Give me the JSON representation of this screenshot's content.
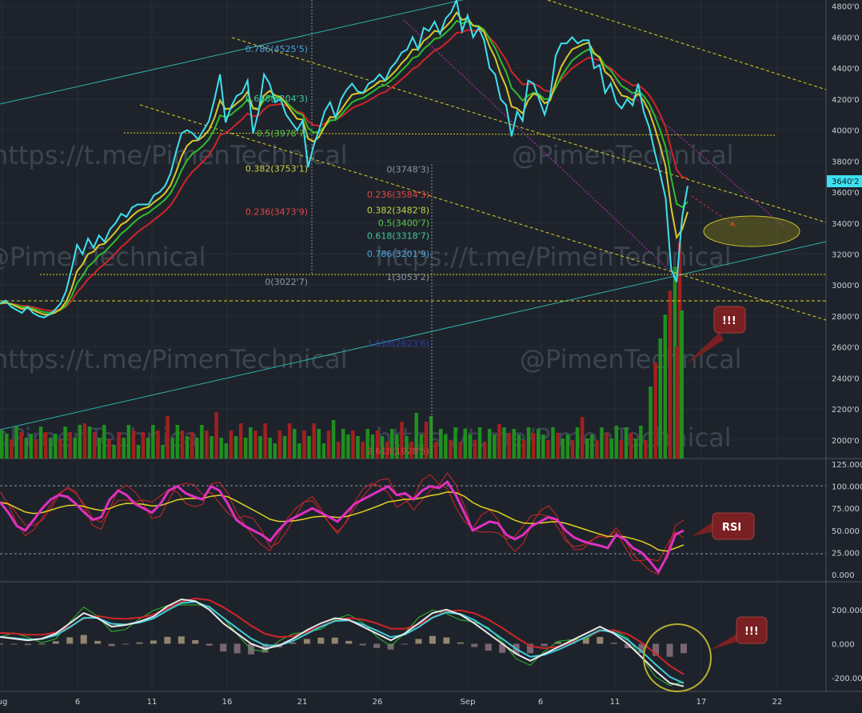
{
  "chart_data": [
    {
      "panel": "price",
      "type": "line",
      "y_ticks": [
        "4800'0",
        "4600'0",
        "4400'0",
        "4200'0",
        "4000'0",
        "3800'0",
        "3600'0",
        "3400'0",
        "3200'0",
        "3000'0",
        "2800'0",
        "2600'0",
        "2400'0",
        "2200'0",
        "2000'0"
      ],
      "ylim": [
        1880,
        4840
      ],
      "x_ticks": [
        "ug",
        "6",
        "11",
        "16",
        "21",
        "26",
        "Sep",
        "6",
        "11",
        "17",
        "22"
      ],
      "last_price_label": "3640'2",
      "last_price": 3640,
      "price_series": [
        2880,
        2900,
        2860,
        2840,
        2820,
        2860,
        2820,
        2800,
        2790,
        2810,
        2840,
        2880,
        2960,
        3100,
        3260,
        3200,
        3300,
        3240,
        3320,
        3280,
        3360,
        3400,
        3460,
        3440,
        3500,
        3520,
        3520,
        3520,
        3580,
        3600,
        3640,
        3720,
        3860,
        3980,
        4000,
        3980,
        3940,
        4000,
        4060,
        4200,
        4360,
        4050,
        4150,
        4220,
        4240,
        4320,
        3980,
        4120,
        4360,
        4300,
        4180,
        4200,
        4100,
        4050,
        4000,
        4060,
        3760,
        3900,
        4000,
        4120,
        4180,
        4080,
        4200,
        4260,
        4300,
        4250,
        4240,
        4300,
        4320,
        4360,
        4320,
        4400,
        4440,
        4500,
        4520,
        4600,
        4520,
        4660,
        4640,
        4700,
        4620,
        4720,
        4760,
        4840,
        4640,
        4740,
        4600,
        4660,
        4580,
        4400,
        4360,
        4200,
        4160,
        3960,
        4120,
        4060,
        4320,
        4300,
        4200,
        4100,
        4220,
        4480,
        4560,
        4560,
        4600,
        4560,
        4580,
        4580,
        4400,
        4420,
        4240,
        4300,
        4180,
        4140,
        4200,
        4160,
        4300,
        4120,
        4020,
        3860,
        3720,
        3560,
        3100,
        3020,
        3440,
        3640
      ],
      "annotations": [
        "!!!",
        "RSI",
        "!!!"
      ]
    },
    {
      "panel": "rsi",
      "type": "line",
      "title": "RSI",
      "y_ticks": [
        "125.000",
        "100.000",
        "75.000",
        "50.000",
        "25.000",
        "0.000"
      ],
      "ylim": [
        0,
        125
      ],
      "values": [
        82,
        70,
        55,
        50,
        62,
        75,
        85,
        90,
        88,
        80,
        70,
        62,
        65,
        85,
        95,
        90,
        80,
        75,
        70,
        80,
        95,
        100,
        92,
        88,
        85,
        100,
        95,
        80,
        62,
        55,
        50,
        45,
        38,
        50,
        60,
        65,
        70,
        75,
        70,
        65,
        60,
        70,
        80,
        85,
        90,
        95,
        100,
        90,
        92,
        85,
        95,
        100,
        98,
        105,
        90,
        70,
        50,
        55,
        60,
        58,
        45,
        40,
        45,
        55,
        60,
        65,
        62,
        50,
        42,
        38,
        35,
        33,
        30,
        45,
        40,
        30,
        25,
        15,
        3,
        20,
        45,
        50
      ]
    },
    {
      "panel": "macd",
      "type": "line",
      "y_ticks": [
        "200.000",
        "0.000",
        "-200.000"
      ],
      "ylim": [
        -270,
        340
      ],
      "values": [
        40,
        30,
        20,
        30,
        60,
        120,
        180,
        150,
        100,
        110,
        130,
        160,
        220,
        260,
        250,
        200,
        120,
        60,
        0,
        -30,
        -10,
        30,
        80,
        120,
        150,
        140,
        100,
        60,
        20,
        60,
        120,
        180,
        200,
        170,
        120,
        60,
        0,
        -60,
        -100,
        -60,
        -20,
        20,
        60,
        100,
        60,
        0,
        -80,
        -160,
        -230,
        -250
      ]
    }
  ],
  "watermark": "https://t.me/PimenTechnical",
  "watermark2": "@PimenTechnical",
  "fib_left": [
    {
      "label": "0.786(4525'5)",
      "color": "#4aa3df",
      "value": 4525.5
    },
    {
      "label": "0.618(4204'3)",
      "color": "#3ec7a0",
      "value": 4204.3
    },
    {
      "label": "0.5(3978'7)",
      "color": "#5cc84a",
      "value": 3978.7
    },
    {
      "label": "0.382(3753'1)",
      "color": "#c8d24a",
      "value": 3753.1
    },
    {
      "label": "0.236(3473'9)",
      "color": "#e04646",
      "value": 3473.9
    },
    {
      "label": "0(3022'7)",
      "color": "#8b95a0",
      "value": 3022.7
    }
  ],
  "fib_right": [
    {
      "label": "0(3748'3)",
      "color": "#8b95a0",
      "value": 3748.3
    },
    {
      "label": "0.236(3584'3)",
      "color": "#e04646",
      "value": 3584.3
    },
    {
      "label": "0.382(3482'8)",
      "color": "#c8d24a",
      "value": 3482.8
    },
    {
      "label": "0.5(3400'7)",
      "color": "#5cc84a",
      "value": 3400.7
    },
    {
      "label": "0.618(3318'7)",
      "color": "#3ec7a0",
      "value": 3318.7
    },
    {
      "label": "0.786(3201'9)",
      "color": "#4aa3df",
      "value": 3201.9
    },
    {
      "label": "1(3053'2)",
      "color": "#8b95a0",
      "value": 3053.2
    },
    {
      "label": "1.618(2623'6)",
      "color": "#2b3fa8",
      "value": 2623.6
    },
    {
      "label": "2.618(1928'5)",
      "color": "#e04646",
      "value": 1928.5
    }
  ],
  "colors": {
    "background": "#1e232b",
    "price": "#3ee0f0",
    "ma_yellow": "#d8c828",
    "ma_green": "#2ebd2e",
    "ma_red": "#d0242a",
    "rsi": "#e030c0",
    "channel_yellow": "#e0d020",
    "channel_purple": "#c030c0",
    "channel_teal": "#30b0a8",
    "callout": "#7a1f22"
  }
}
